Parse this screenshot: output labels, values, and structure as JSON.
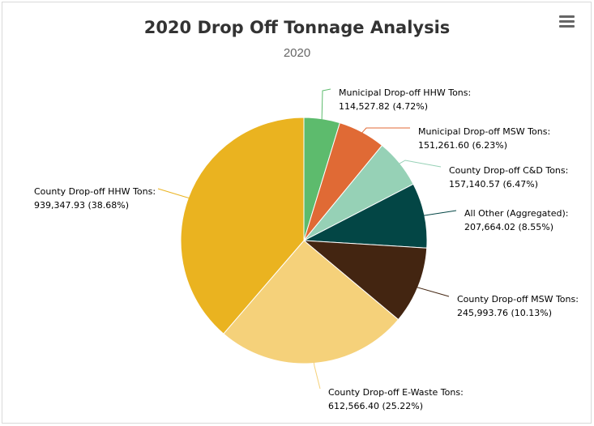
{
  "header": {
    "title": "2020 Drop Off Tonnage Analysis",
    "subtitle": "2020",
    "menu_icon": "hamburger-menu-icon"
  },
  "chart_data": {
    "type": "pie",
    "title": "2020 Drop Off Tonnage Analysis",
    "subtitle": "2020",
    "slices": [
      {
        "name": "Municipal Drop-off HHW Tons",
        "value": 114527.82,
        "percent": 4.72,
        "value_label": "114,527.82 (4.72%)",
        "color": "#5dbb6d"
      },
      {
        "name": "Municipal Drop-off MSW Tons",
        "value": 151261.6,
        "percent": 6.23,
        "value_label": "151,261.60 (6.23%)",
        "color": "#e06a35"
      },
      {
        "name": "County Drop-off C&D Tons",
        "value": 157140.57,
        "percent": 6.47,
        "value_label": "157,140.57 (6.47%)",
        "color": "#96d1b6"
      },
      {
        "name": "All Other (Aggregated)",
        "value": 207664.02,
        "percent": 8.55,
        "value_label": "207,664.02 (8.55%)",
        "color": "#034645"
      },
      {
        "name": "County Drop-off MSW Tons",
        "value": 245993.76,
        "percent": 10.13,
        "value_label": "245,993.76 (10.13%)",
        "color": "#432511"
      },
      {
        "name": "County Drop-off E-Waste Tons",
        "value": 612566.4,
        "percent": 25.22,
        "value_label": "612,566.40 (25.22%)",
        "color": "#f5d17a"
      },
      {
        "name": "County Drop-off HHW Tons",
        "value": 939347.93,
        "percent": 38.68,
        "value_label": "939,347.93 (38.68%)",
        "color": "#eab320"
      }
    ]
  }
}
